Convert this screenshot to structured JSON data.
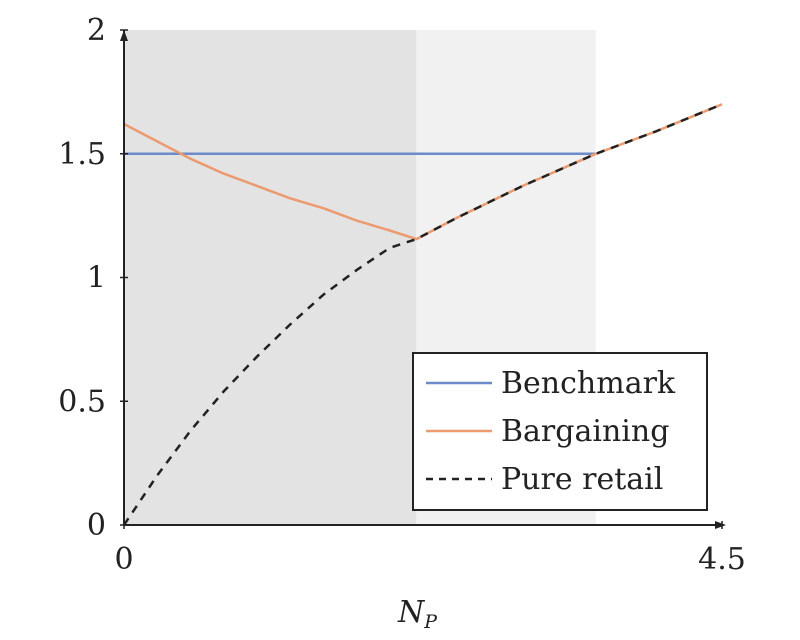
{
  "chart_data": {
    "type": "line",
    "xlabel": "N",
    "xlabel_sub": "P",
    "ylabel": "",
    "xlim": [
      0,
      4.5
    ],
    "ylim": [
      0,
      2
    ],
    "x_ticks": [
      {
        "value": 0,
        "label": "0"
      },
      {
        "value": 4.5,
        "label": "4.5"
      }
    ],
    "y_ticks": [
      {
        "value": 0,
        "label": "0"
      },
      {
        "value": 0.5,
        "label": "0.5"
      },
      {
        "value": 1,
        "label": "1"
      },
      {
        "value": 1.5,
        "label": "1.5"
      },
      {
        "value": 2,
        "label": "2"
      }
    ],
    "shaded_regions": [
      {
        "x_start": 0,
        "x_end": 2.2,
        "color": "#e3e3e3"
      },
      {
        "x_start": 2.2,
        "x_end": 3.55,
        "color": "#f1f1f1"
      }
    ],
    "series": [
      {
        "name": "Benchmark",
        "color": "#6b8cc9",
        "style": "solid",
        "x": [
          0,
          3.55
        ],
        "y": [
          1.5,
          1.5
        ]
      },
      {
        "name": "Bargaining",
        "color": "#ec9a70",
        "style": "solid",
        "x": [
          0,
          0.25,
          0.5,
          0.75,
          1.0,
          1.25,
          1.5,
          1.75,
          2.0,
          2.2,
          2.5,
          3.0,
          3.55,
          4.0,
          4.5
        ],
        "y": [
          1.62,
          1.55,
          1.48,
          1.42,
          1.37,
          1.32,
          1.28,
          1.23,
          1.19,
          1.155,
          1.24,
          1.37,
          1.5,
          1.59,
          1.7
        ]
      },
      {
        "name": "Pure retail",
        "color": "#222222",
        "style": "dashed",
        "x": [
          0,
          0.25,
          0.5,
          0.75,
          1.0,
          1.25,
          1.5,
          1.75,
          2.0,
          2.2,
          2.5,
          3.0,
          3.55,
          4.0,
          4.5
        ],
        "y": [
          0,
          0.2,
          0.38,
          0.54,
          0.68,
          0.81,
          0.93,
          1.03,
          1.12,
          1.155,
          1.24,
          1.37,
          1.5,
          1.59,
          1.7
        ]
      }
    ],
    "legend": {
      "position": "bottom-right",
      "entries": [
        "Benchmark",
        "Bargaining",
        "Pure retail"
      ]
    }
  }
}
